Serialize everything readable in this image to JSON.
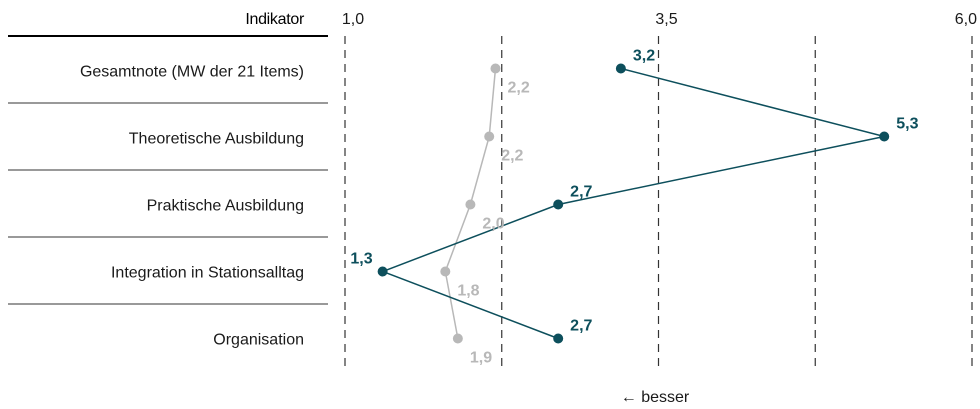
{
  "chart_data": {
    "type": "line",
    "column_header": "Indikator",
    "categories": [
      "Gesamtnote (MW der 21 Items)",
      "Theoretische Ausbildung",
      "Praktische Ausbildung",
      "Integration in Stationsalltag",
      "Organisation"
    ],
    "x_ticks": [
      "1,0",
      "3,5",
      "6,0"
    ],
    "x_tick_values": [
      1.0,
      3.5,
      6.0
    ],
    "xlim": [
      1.0,
      6.0
    ],
    "gridlines": [
      1.0,
      2.25,
      3.5,
      4.75,
      6.0
    ],
    "direction_note": "← besser",
    "series": [
      {
        "values": [
          3.2,
          5.3,
          2.7,
          1.3,
          2.7
        ],
        "labels": [
          "3,2",
          "5,3",
          "2,7",
          "1,3",
          "2,7"
        ],
        "color": "#0d4f5c"
      },
      {
        "values": [
          2.2,
          2.15,
          2.0,
          1.8,
          1.9
        ],
        "labels": [
          "2,2",
          "2,2",
          "2,0",
          "1,8",
          "1,9"
        ],
        "color": "#b8b8b8"
      }
    ]
  }
}
